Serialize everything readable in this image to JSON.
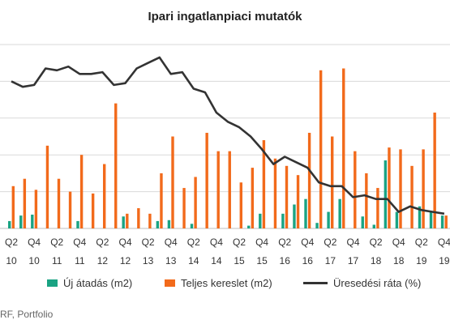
{
  "title": "Ipari ingatlanpiaci mutatók",
  "source": "RF, Portfolio",
  "chart_data": {
    "type": "bar",
    "title": "Ipari ingatlanpiaci mutatók",
    "grid": true,
    "legend_position": "bottom",
    "categories": [
      "Q2 10",
      "Q3 10",
      "Q4 10",
      "Q1 11",
      "Q2 11",
      "Q3 11",
      "Q4 11",
      "Q1 12",
      "Q2 12",
      "Q3 12",
      "Q4 12",
      "Q1 13",
      "Q2 13",
      "Q3 13",
      "Q4 13",
      "Q1 14",
      "Q2 14",
      "Q3 14",
      "Q4 14",
      "Q1 15",
      "Q2 15",
      "Q3 15",
      "Q4 15",
      "Q1 16",
      "Q2 16",
      "Q3 16",
      "Q4 16",
      "Q1 17",
      "Q2 17",
      "Q3 17",
      "Q4 17",
      "Q1 18",
      "Q2 18",
      "Q3 18",
      "Q4 18",
      "Q1 19",
      "Q2 19",
      "Q3 19",
      "Q4 19"
    ],
    "tick_labels": [
      {
        "index": 0,
        "top": "Q2",
        "bottom": "10"
      },
      {
        "index": 2,
        "top": "Q4",
        "bottom": "10"
      },
      {
        "index": 4,
        "top": "Q2",
        "bottom": "11"
      },
      {
        "index": 6,
        "top": "Q4",
        "bottom": "11"
      },
      {
        "index": 8,
        "top": "Q2",
        "bottom": "12"
      },
      {
        "index": 10,
        "top": "Q4",
        "bottom": "12"
      },
      {
        "index": 12,
        "top": "Q2",
        "bottom": "13"
      },
      {
        "index": 14,
        "top": "Q4",
        "bottom": "13"
      },
      {
        "index": 16,
        "top": "Q2",
        "bottom": "14"
      },
      {
        "index": 18,
        "top": "Q4",
        "bottom": "14"
      },
      {
        "index": 20,
        "top": "Q2",
        "bottom": "15"
      },
      {
        "index": 22,
        "top": "Q4",
        "bottom": "15"
      },
      {
        "index": 24,
        "top": "Q2",
        "bottom": "16"
      },
      {
        "index": 26,
        "top": "Q4",
        "bottom": "16"
      },
      {
        "index": 28,
        "top": "Q2",
        "bottom": "17"
      },
      {
        "index": 30,
        "top": "Q4",
        "bottom": "17"
      },
      {
        "index": 32,
        "top": "Q2",
        "bottom": "18"
      },
      {
        "index": 34,
        "top": "Q4",
        "bottom": "18"
      },
      {
        "index": 36,
        "top": "Q2",
        "bottom": "19"
      },
      {
        "index": 38,
        "top": "Q4",
        "bottom": "19"
      }
    ],
    "ylim": [
      0,
      1
    ],
    "grid_lines": [
      0.2,
      0.4,
      0.6,
      0.8,
      1.0
    ],
    "series": [
      {
        "name": "Új átadás (m2)",
        "type": "bar",
        "color": "#1aa383",
        "values": [
          0.04,
          0.07,
          0.075,
          0.0,
          0.0,
          0.0,
          0.04,
          0.0,
          0.0,
          0.0,
          0.065,
          0.0,
          0.0,
          0.04,
          0.045,
          0.0,
          0.025,
          0.0,
          0.0,
          0.0,
          0.0,
          0.015,
          0.08,
          0.0,
          0.08,
          0.13,
          0.16,
          0.03,
          0.09,
          0.16,
          0.0,
          0.065,
          0.02,
          0.37,
          0.09,
          0.0,
          0.12,
          0.09,
          0.07
        ]
      },
      {
        "name": "Teljes kereslet (m2)",
        "type": "bar",
        "color": "#f26a1b",
        "values": [
          0.23,
          0.27,
          0.21,
          0.45,
          0.27,
          0.2,
          0.4,
          0.19,
          0.35,
          0.68,
          0.08,
          0.11,
          0.08,
          0.3,
          0.5,
          0.22,
          0.28,
          0.52,
          0.42,
          0.42,
          0.25,
          0.33,
          0.48,
          0.38,
          0.34,
          0.29,
          0.52,
          0.86,
          0.5,
          0.87,
          0.42,
          0.3,
          0.22,
          0.44,
          0.43,
          0.34,
          0.43,
          0.63,
          0.07
        ]
      },
      {
        "name": "Üresedési ráta (%)",
        "type": "line",
        "color": "#333333",
        "values": [
          0.8,
          0.77,
          0.78,
          0.87,
          0.86,
          0.88,
          0.84,
          0.84,
          0.85,
          0.78,
          0.79,
          0.87,
          0.9,
          0.93,
          0.84,
          0.85,
          0.76,
          0.74,
          0.63,
          0.58,
          0.55,
          0.5,
          0.43,
          0.35,
          0.39,
          0.36,
          0.33,
          0.25,
          0.23,
          0.23,
          0.17,
          0.18,
          0.16,
          0.16,
          0.09,
          0.12,
          0.1,
          0.09,
          0.08
        ]
      }
    ]
  }
}
